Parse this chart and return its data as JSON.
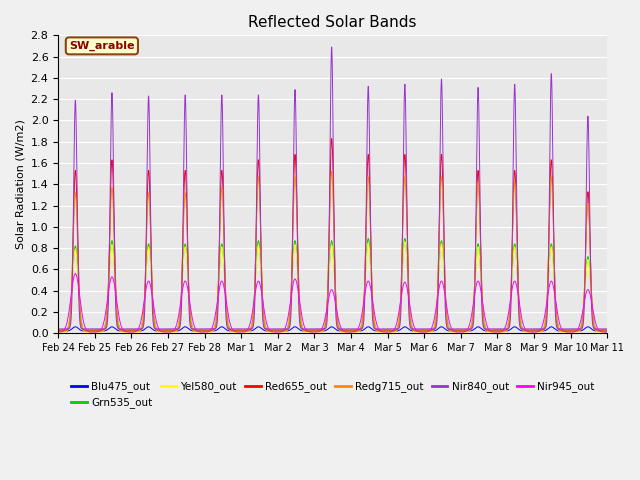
{
  "title": "Reflected Solar Bands",
  "ylabel": "Solar Radiation (W/m2)",
  "background_color": "#f0f0f0",
  "plot_bg_color": "#e8e8e8",
  "annotation_text": "SW_arable",
  "annotation_bg": "#ffffcc",
  "annotation_border": "#8b4513",
  "annotation_text_color": "#8b0000",
  "ylim": [
    0,
    2.8
  ],
  "series": [
    {
      "name": "Blu475_out",
      "color": "#0000ff"
    },
    {
      "name": "Grn535_out",
      "color": "#00cc00"
    },
    {
      "name": "Yel580_out",
      "color": "#ffff00"
    },
    {
      "name": "Red655_out",
      "color": "#ff0000"
    },
    {
      "name": "Redg715_out",
      "color": "#ff8800"
    },
    {
      "name": "Nir840_out",
      "color": "#9933cc"
    },
    {
      "name": "Nir945_out",
      "color": "#ff00ff"
    }
  ],
  "n_days": 15,
  "tick_labels": [
    "Feb 24",
    "Feb 25",
    "Feb 26",
    "Feb 27",
    "Feb 28",
    "Mar 1",
    "Mar 2",
    "Mar 3",
    "Mar 4",
    "Mar 5",
    "Mar 6",
    "Mar 7",
    "Mar 8",
    "Mar 9",
    "Mar 10",
    "Mar 11"
  ],
  "blu_base": 0.04,
  "grn_base": 0.85,
  "yel_base": 0.83,
  "red_base": 1.5,
  "redg_base": 1.35,
  "nir840_peaks": [
    2.15,
    2.22,
    2.19,
    2.2,
    2.2,
    2.2,
    2.25,
    2.65,
    2.28,
    2.3,
    2.35,
    2.27,
    2.3,
    2.4,
    2.0
  ],
  "nir945_plateau": [
    0.55,
    0.52,
    0.48,
    0.48,
    0.48,
    0.48,
    0.5,
    0.4,
    0.48,
    0.47,
    0.48,
    0.48,
    0.48,
    0.48,
    0.4
  ],
  "red_peaks": [
    1.5,
    1.6,
    1.5,
    1.5,
    1.5,
    1.6,
    1.65,
    1.8,
    1.65,
    1.65,
    1.65,
    1.5,
    1.5,
    1.6,
    1.3
  ],
  "redg_peaks": [
    1.3,
    1.35,
    1.3,
    1.3,
    1.35,
    1.45,
    1.45,
    1.5,
    1.45,
    1.45,
    1.45,
    1.4,
    1.4,
    1.45,
    1.2
  ],
  "grn_peaks": [
    0.8,
    0.85,
    0.82,
    0.82,
    0.82,
    0.85,
    0.85,
    0.85,
    0.87,
    0.87,
    0.85,
    0.82,
    0.82,
    0.82,
    0.7
  ],
  "yel_peaks": [
    0.78,
    0.82,
    0.8,
    0.8,
    0.8,
    0.82,
    0.82,
    0.82,
    0.84,
    0.85,
    0.83,
    0.8,
    0.8,
    0.8,
    0.68
  ]
}
